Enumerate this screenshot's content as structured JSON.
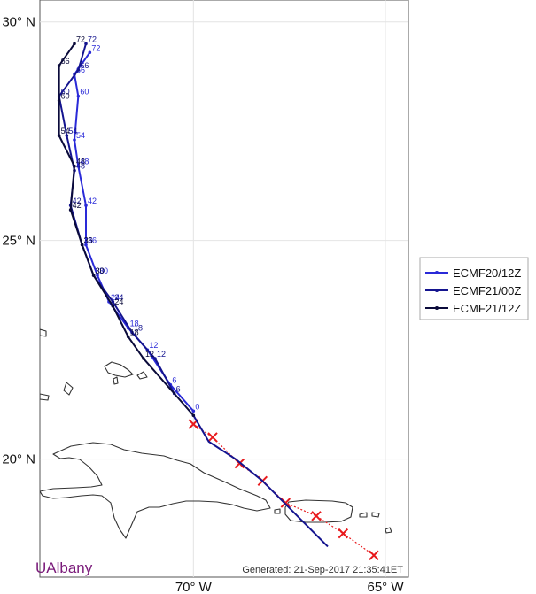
{
  "axes": {
    "x_ticks": [
      {
        "value": -70,
        "label": "70° W"
      },
      {
        "value": -65,
        "label": "65° W"
      }
    ],
    "y_ticks": [
      {
        "value": 30,
        "label": "30° N"
      },
      {
        "value": 25,
        "label": "25° N"
      },
      {
        "value": 20,
        "label": "20° N"
      }
    ],
    "lon_range": [
      -74.0,
      -64.4
    ],
    "lat_range": [
      17.3,
      30.5
    ],
    "grid": true
  },
  "legend": {
    "placement": "right",
    "entries": [
      {
        "label": "ECMF20/12Z",
        "color": "#2a2ad8"
      },
      {
        "label": "ECMF21/00Z",
        "color": "#14148f"
      },
      {
        "label": "ECMF21/12Z",
        "color": "#0a0a3a"
      }
    ]
  },
  "chart_data": {
    "type": "line",
    "tracks": [
      {
        "name": "ECMF20/12Z",
        "color": "#2a2ad8",
        "points": [
          {
            "hour": "0",
            "lon": -70.0,
            "lat": 21.1
          },
          {
            "hour": "6",
            "lon": -70.6,
            "lat": 21.7
          },
          {
            "hour": "12",
            "lon": -71.2,
            "lat": 22.5
          },
          {
            "hour": "18",
            "lon": -71.7,
            "lat": 23.0
          },
          {
            "hour": "24",
            "lon": -72.2,
            "lat": 23.6
          },
          {
            "hour": "30",
            "lon": -72.5,
            "lat": 24.2
          },
          {
            "hour": "36",
            "lon": -72.8,
            "lat": 24.9
          },
          {
            "hour": "42",
            "lon": -72.8,
            "lat": 25.8
          },
          {
            "hour": "48",
            "lon": -73.0,
            "lat": 26.7
          },
          {
            "hour": "54",
            "lon": -73.1,
            "lat": 27.3
          },
          {
            "hour": "60",
            "lon": -73.0,
            "lat": 28.3
          },
          {
            "hour": "66",
            "lon": -73.1,
            "lat": 28.8
          },
          {
            "hour": "72",
            "lon": -72.7,
            "lat": 29.3
          }
        ]
      },
      {
        "name": "ECMF21/00Z",
        "color": "#14148f",
        "points": [
          {
            "hour": "6",
            "lon": -70.5,
            "lat": 21.5
          },
          {
            "hour": "12",
            "lon": -71.0,
            "lat": 22.3
          },
          {
            "hour": "18",
            "lon": -71.6,
            "lat": 22.9
          },
          {
            "hour": "24",
            "lon": -72.1,
            "lat": 23.6
          },
          {
            "hour": "30",
            "lon": -72.6,
            "lat": 24.2
          },
          {
            "hour": "36",
            "lon": -72.9,
            "lat": 24.9
          },
          {
            "hour": "42",
            "lon": -73.2,
            "lat": 25.8
          },
          {
            "hour": "48",
            "lon": -73.1,
            "lat": 26.6
          },
          {
            "hour": "54",
            "lon": -73.3,
            "lat": 27.4
          },
          {
            "hour": "60",
            "lon": -73.5,
            "lat": 28.3
          },
          {
            "hour": "66",
            "lon": -73.0,
            "lat": 28.9
          },
          {
            "hour": "72",
            "lon": -72.8,
            "lat": 29.5
          }
        ]
      },
      {
        "name": "ECMF21/12Z",
        "color": "#0a0a3a",
        "points": [
          {
            "hour": "",
            "lon": -70.0,
            "lat": 21.0
          },
          {
            "hour": "12",
            "lon": -71.3,
            "lat": 22.3
          },
          {
            "hour": "18",
            "lon": -71.7,
            "lat": 22.8
          },
          {
            "hour": "24",
            "lon": -72.1,
            "lat": 23.5
          },
          {
            "hour": "30",
            "lon": -72.6,
            "lat": 24.2
          },
          {
            "hour": "36",
            "lon": -72.9,
            "lat": 24.9
          },
          {
            "hour": "42",
            "lon": -73.2,
            "lat": 25.7
          },
          {
            "hour": "48",
            "lon": -73.1,
            "lat": 26.7
          },
          {
            "hour": "54",
            "lon": -73.5,
            "lat": 27.4
          },
          {
            "hour": "60",
            "lon": -73.5,
            "lat": 28.2
          },
          {
            "hour": "66",
            "lon": -73.5,
            "lat": 29.0
          },
          {
            "hour": "72",
            "lon": -73.1,
            "lat": 29.5
          }
        ]
      }
    ],
    "path_start": [
      {
        "lon": -66.5,
        "lat": 18.0
      },
      {
        "lon": -68.2,
        "lat": 19.5
      },
      {
        "lon": -68.9,
        "lat": 20.0
      },
      {
        "lon": -69.6,
        "lat": 20.4
      },
      {
        "lon": -70.0,
        "lat": 21.0
      }
    ],
    "observed": {
      "color": "#e8191c",
      "points": [
        {
          "lon": -65.3,
          "lat": 17.8
        },
        {
          "lon": -66.1,
          "lat": 18.3
        },
        {
          "lon": -66.8,
          "lat": 18.7
        },
        {
          "lon": -67.6,
          "lat": 19.0
        },
        {
          "lon": -68.2,
          "lat": 19.5
        },
        {
          "lon": -68.8,
          "lat": 19.9
        },
        {
          "lon": -69.5,
          "lat": 20.5
        },
        {
          "lon": -70.0,
          "lat": 20.8
        }
      ]
    }
  },
  "footer": {
    "brand": "UAlbany",
    "generated": "Generated: 21-Sep-2017 21:35:41ET"
  }
}
